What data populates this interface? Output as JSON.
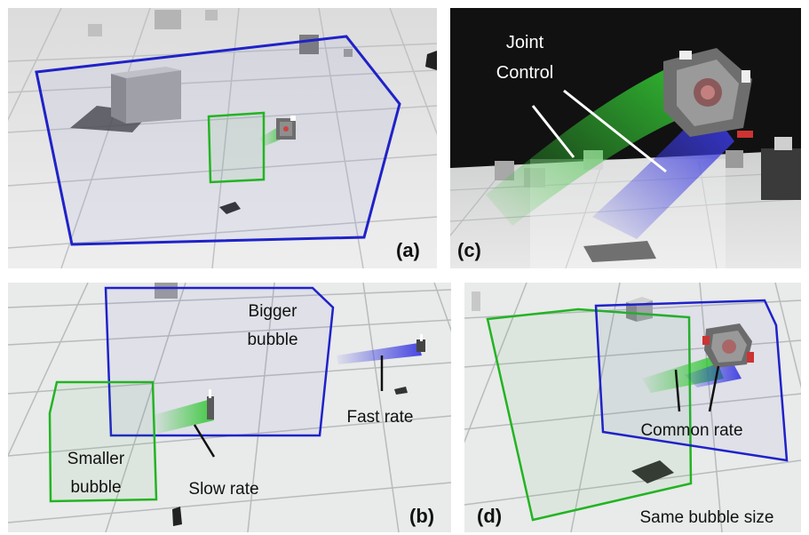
{
  "panels": {
    "a": {
      "label": "(a)"
    },
    "b": {
      "label": "(b)",
      "bigger": "Bigger",
      "bubble_word": "bubble",
      "smaller": "Smaller",
      "slow": "Slow rate",
      "fast": "Fast rate"
    },
    "c": {
      "label": "(c)",
      "joint": "Joint",
      "control": "Control"
    },
    "d": {
      "label": "(d)",
      "common": "Common rate",
      "same": "Same bubble size"
    }
  },
  "colors": {
    "blue_bubble": "#1f22c8",
    "green_bubble": "#22b422",
    "floor": "#e9eaea",
    "grid": "#b9bcbe",
    "dark_bg": "#141414"
  }
}
